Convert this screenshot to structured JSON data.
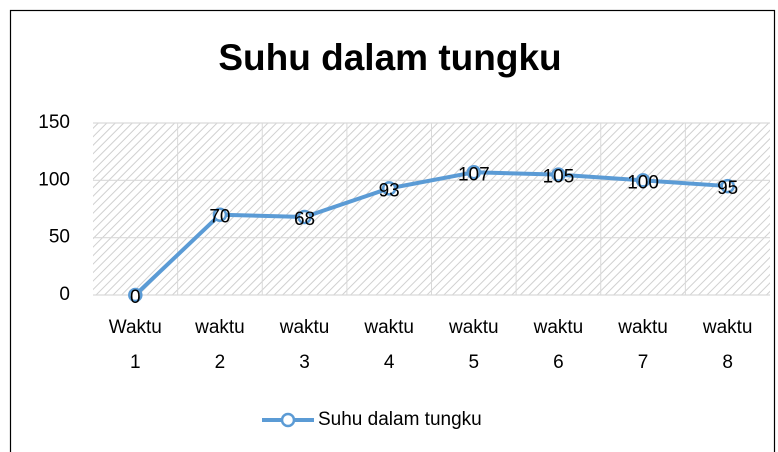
{
  "chart_data": {
    "type": "line",
    "title": "Suhu dalam tungku",
    "categories": [
      "Waktu 1",
      "waktu 2",
      "waktu 3",
      "waktu 4",
      "waktu 5",
      "waktu 6",
      "waktu 7",
      "waktu 8"
    ],
    "series": [
      {
        "name": "Suhu dalam tungku",
        "color": "#5b9bd5",
        "values": [
          0,
          70,
          68,
          93,
          107,
          105,
          100,
          95
        ]
      }
    ],
    "ylim": [
      0,
      150
    ],
    "yticks": [
      0,
      50,
      100,
      150
    ],
    "grid": true,
    "legend": "bottom"
  }
}
